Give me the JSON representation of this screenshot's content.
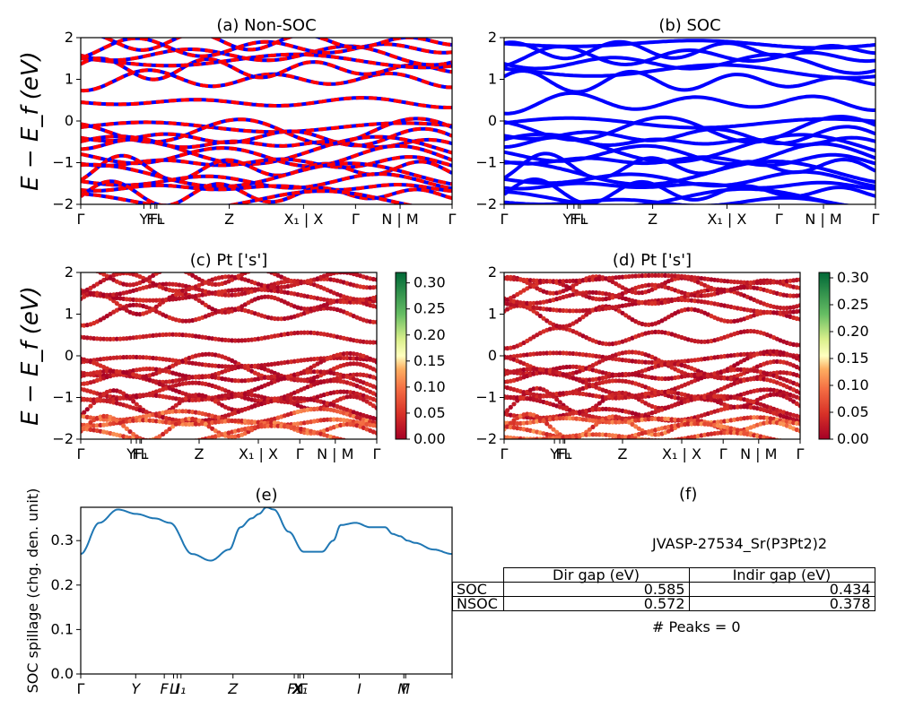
{
  "figure_title_e": "(e)",
  "figure_title_f": "(f)",
  "chart_data": [
    {
      "id": "a",
      "type": "line",
      "title": "(a) Non-SOC",
      "ylabel": "E − E_f (eV)",
      "ylim": [
        -2,
        2
      ],
      "yticks": [
        "−2",
        "−1",
        "0",
        "1",
        "2"
      ],
      "xtick_labels": [
        "Γ",
        "Y",
        "F",
        "F₁",
        "L",
        "Z",
        "X₁ | X",
        "Γ",
        "N | M",
        "Γ"
      ],
      "series_colors": [
        "#ff0000",
        "#0000ff"
      ],
      "bands_valence": [
        -0.15,
        -0.25,
        -0.4,
        -0.55,
        -0.7,
        -0.85,
        -1.0,
        -1.15,
        -1.3,
        -1.45,
        -1.6,
        -1.75,
        -1.9
      ],
      "bands_conduction": [
        0.45,
        1.0,
        1.25,
        1.45,
        1.6,
        1.75,
        1.9
      ]
    },
    {
      "id": "b",
      "type": "line",
      "title": "(b) SOC",
      "ylim": [
        -2,
        2
      ],
      "yticks": [
        "−2",
        "−1",
        "0",
        "1",
        "2"
      ],
      "xtick_labels": [
        "Γ",
        "Y",
        "F",
        "F₁",
        "L",
        "Z",
        "X₁ | X",
        "Γ",
        "N | M",
        "Γ"
      ],
      "series_colors": [
        "#0000ff"
      ],
      "bands_valence": [
        -0.05,
        -0.2,
        -0.35,
        -0.5,
        -0.65,
        -0.8,
        -0.95,
        -1.1,
        -1.25,
        -1.4,
        -1.55,
        -1.7,
        -1.85,
        -1.95
      ],
      "bands_conduction": [
        0.45,
        0.95,
        1.2,
        1.4,
        1.55,
        1.7,
        1.85
      ]
    },
    {
      "id": "c",
      "type": "scatter",
      "title": "(c)  Pt ['s']",
      "ylabel": "E − E_f (eV)",
      "ylim": [
        -2,
        2
      ],
      "yticks": [
        "−2",
        "−1",
        "0",
        "1",
        "2"
      ],
      "xtick_labels": [
        "Γ",
        "Y",
        "F",
        "F₁",
        "L",
        "Z",
        "X₁ | X",
        "Γ",
        "N | M",
        "Γ"
      ],
      "colorbar": {
        "min": 0.0,
        "max": 0.32,
        "ticks": [
          "0.00",
          "0.05",
          "0.10",
          "0.15",
          "0.20",
          "0.25",
          "0.30"
        ]
      }
    },
    {
      "id": "d",
      "type": "scatter",
      "title": "(d) Pt ['s']",
      "ylim": [
        -2,
        2
      ],
      "yticks": [
        "−2",
        "−1",
        "0",
        "1",
        "2"
      ],
      "xtick_labels": [
        "Γ",
        "Y",
        "F",
        "F₁",
        "L",
        "Z",
        "X₁ | X",
        "Γ",
        "N | M",
        "Γ"
      ],
      "colorbar": {
        "min": 0.0,
        "max": 0.31,
        "ticks": [
          "0.00",
          "0.05",
          "0.10",
          "0.15",
          "0.20",
          "0.25",
          "0.30"
        ]
      }
    },
    {
      "id": "e",
      "type": "line",
      "title": "(e)",
      "ylabel": "SOC spillage (chg. den. unit)",
      "ylim": [
        0.0,
        0.375
      ],
      "yticks": [
        "0.0",
        "0.1",
        "0.2",
        "0.3"
      ],
      "xtick_labels": [
        "Γ",
        "Y",
        "F",
        "L",
        "I",
        "I₁",
        "Z",
        "F₁",
        "X",
        "X₁",
        "Γ",
        "I",
        "M",
        "Γ"
      ],
      "series_color": "#1f77b4",
      "x": [
        0,
        0.05,
        0.1,
        0.15,
        0.2,
        0.24,
        0.3,
        0.35,
        0.4,
        0.43,
        0.46,
        0.48,
        0.5,
        0.52,
        0.56,
        0.6,
        0.65,
        0.68,
        0.7,
        0.74,
        0.78,
        0.82,
        0.84,
        0.86,
        0.88,
        0.9,
        0.95,
        1.0
      ],
      "y": [
        0.27,
        0.34,
        0.37,
        0.36,
        0.35,
        0.34,
        0.27,
        0.255,
        0.28,
        0.33,
        0.35,
        0.36,
        0.375,
        0.37,
        0.32,
        0.275,
        0.275,
        0.3,
        0.335,
        0.34,
        0.33,
        0.33,
        0.315,
        0.31,
        0.3,
        0.295,
        0.28,
        0.27
      ]
    }
  ],
  "table": {
    "title": "JVASP-27534_Sr(P3Pt2)2",
    "col_headers": [
      "Dir gap (eV)",
      "Indir gap (eV)"
    ],
    "rows": [
      {
        "label": "SOC",
        "dir": "0.585",
        "indir": "0.434"
      },
      {
        "label": "NSOC",
        "dir": "0.572",
        "indir": "0.378"
      }
    ],
    "peaks": "# Peaks = 0"
  }
}
